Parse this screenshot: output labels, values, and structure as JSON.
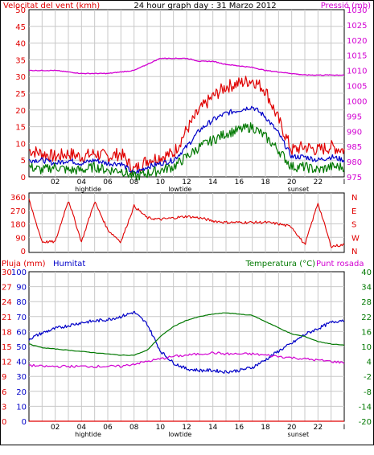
{
  "header": {
    "title": "24 hour graph day : 31 Marzo 2012",
    "left_title": "Velocitat del vent (kmh)",
    "right_title": "Pressió (mb)"
  },
  "colors": {
    "frame": "#000000",
    "background": "#ffffff",
    "grid": "#c8c8c8",
    "red": "#e00000",
    "blue": "#0000c8",
    "green": "#007800",
    "magenta": "#d200d2"
  },
  "x_axis": {
    "hour_labels": [
      "02",
      "04",
      "06",
      "08",
      "10",
      "12",
      "14",
      "16",
      "18",
      "20",
      "22",
      "I"
    ],
    "events": [
      {
        "label": "hightide",
        "hour": 4.5
      },
      {
        "label": "lowtide",
        "hour": 11.5
      },
      {
        "label": "sunset",
        "hour": 20.5
      }
    ]
  },
  "chart_data": [
    {
      "id": "wind_pressure",
      "type": "line",
      "title": "24 hour graph day : 31 Marzo 2012",
      "ylabel_left": "Velocitat del vent (kmh)",
      "ylabel_right": "Pressió (mb)",
      "ylim_left": [
        0,
        50
      ],
      "ylim_right": [
        975,
        1030
      ],
      "left_ticks": [
        0,
        5,
        10,
        15,
        20,
        25,
        30,
        35,
        40,
        45,
        50
      ],
      "right_ticks": [
        975,
        980,
        985,
        990,
        995,
        1000,
        1005,
        1010,
        1015,
        1020,
        1025,
        1030
      ],
      "x": [
        0,
        1,
        2,
        3,
        4,
        5,
        6,
        7,
        8,
        9,
        10,
        11,
        12,
        13,
        14,
        15,
        16,
        17,
        18,
        19,
        20,
        21,
        22,
        23,
        24
      ],
      "series": [
        {
          "key": "gust",
          "axis": "left",
          "color": "red",
          "values": [
            8,
            7,
            6,
            7,
            6,
            7,
            6,
            7,
            2,
            5,
            6,
            7,
            14,
            20,
            24,
            27,
            28,
            29,
            26,
            17,
            8,
            9,
            8,
            9,
            8
          ]
        },
        {
          "key": "average",
          "axis": "left",
          "color": "blue",
          "values": [
            5,
            5,
            4,
            5,
            4,
            5,
            4,
            4,
            1,
            3,
            4,
            5,
            9,
            14,
            17,
            19,
            20,
            21,
            18,
            13,
            6,
            6,
            5,
            6,
            5
          ]
        },
        {
          "key": "min",
          "axis": "left",
          "color": "green",
          "values": [
            3,
            2,
            3,
            2,
            2,
            3,
            2,
            2,
            0,
            1,
            2,
            3,
            6,
            9,
            11,
            13,
            14,
            15,
            12,
            8,
            3,
            3,
            2,
            3,
            3
          ]
        },
        {
          "key": "pressure",
          "axis": "right",
          "color": "magenta",
          "values": [
            1010,
            1010,
            1010,
            1009.5,
            1009,
            1009,
            1009,
            1009.5,
            1010,
            1012,
            1014,
            1014,
            1014,
            1013,
            1013,
            1012,
            1011.5,
            1011,
            1010,
            1009.5,
            1009,
            1008.5,
            1008.5,
            1008.5,
            1008.5
          ]
        }
      ]
    },
    {
      "id": "wind_direction",
      "type": "line",
      "ylim_left": [
        0,
        360
      ],
      "left_ticks": [
        0,
        90,
        180,
        270,
        360
      ],
      "right_ticks": [
        "N",
        "W",
        "S",
        "E",
        "N"
      ],
      "x": [
        0,
        1,
        2,
        3,
        4,
        5,
        6,
        7,
        8,
        9,
        10,
        11,
        12,
        13,
        14,
        15,
        16,
        17,
        18,
        19,
        20,
        21,
        22,
        23,
        24
      ],
      "series": [
        {
          "key": "direction",
          "color": "red",
          "values": [
            340,
            60,
            60,
            340,
            60,
            330,
            140,
            60,
            300,
            220,
            210,
            220,
            230,
            220,
            200,
            190,
            190,
            190,
            190,
            180,
            160,
            40,
            320,
            30,
            40
          ]
        }
      ]
    },
    {
      "id": "temp_hum",
      "type": "line",
      "left_labels": {
        "rain": "Pluja (mm)",
        "humidity": "Humitat"
      },
      "right_labels": {
        "temperature": "Temperatura (°C)",
        "dewpoint": "Punt rosada"
      },
      "ylim_rain": [
        0,
        30
      ],
      "rain_ticks": [
        0,
        3,
        6,
        9,
        12,
        15,
        18,
        21,
        24,
        27,
        30
      ],
      "ylim_humidity": [
        0,
        100
      ],
      "humidity_ticks": [
        0,
        10,
        20,
        30,
        40,
        50,
        60,
        70,
        80,
        90,
        100
      ],
      "ylim_temp": [
        -20,
        40
      ],
      "temp_ticks": [
        -20,
        -14,
        -8,
        -2,
        4,
        10,
        16,
        22,
        28,
        34,
        40
      ],
      "x": [
        0,
        1,
        2,
        3,
        4,
        5,
        6,
        7,
        8,
        9,
        10,
        11,
        12,
        13,
        14,
        15,
        16,
        17,
        18,
        19,
        20,
        21,
        22,
        23,
        24
      ],
      "series": [
        {
          "key": "humidity",
          "axis": "humidity",
          "color": "blue",
          "values": [
            55,
            59,
            62,
            64,
            66,
            67,
            68,
            70,
            73,
            65,
            47,
            39,
            35,
            34,
            34,
            33,
            34,
            36,
            41,
            47,
            52,
            58,
            62,
            66,
            68
          ]
        },
        {
          "key": "temperature",
          "axis": "temp",
          "color": "green",
          "values": [
            11,
            9.5,
            9,
            8.5,
            8,
            7.5,
            7,
            6.5,
            6.5,
            8.5,
            14,
            18,
            20.5,
            22,
            23,
            23.5,
            23,
            22.5,
            20,
            17.5,
            15,
            14,
            12,
            11,
            10.5
          ]
        },
        {
          "key": "dewpoint",
          "axis": "temp",
          "color": "magenta",
          "values": [
            2.5,
            2,
            2,
            2,
            2,
            2,
            2,
            2,
            3,
            4,
            5,
            6,
            6.5,
            7,
            7.5,
            7,
            7,
            7,
            6.5,
            6,
            5.5,
            5,
            4.5,
            4,
            3.5
          ]
        },
        {
          "key": "rain",
          "axis": "rain",
          "color": "red",
          "values": [
            0,
            0,
            0,
            0,
            0,
            0,
            0,
            0,
            0,
            0,
            0,
            0,
            0,
            0,
            0,
            0,
            0,
            0,
            0,
            0,
            0,
            0,
            0,
            0,
            0
          ]
        }
      ]
    }
  ]
}
